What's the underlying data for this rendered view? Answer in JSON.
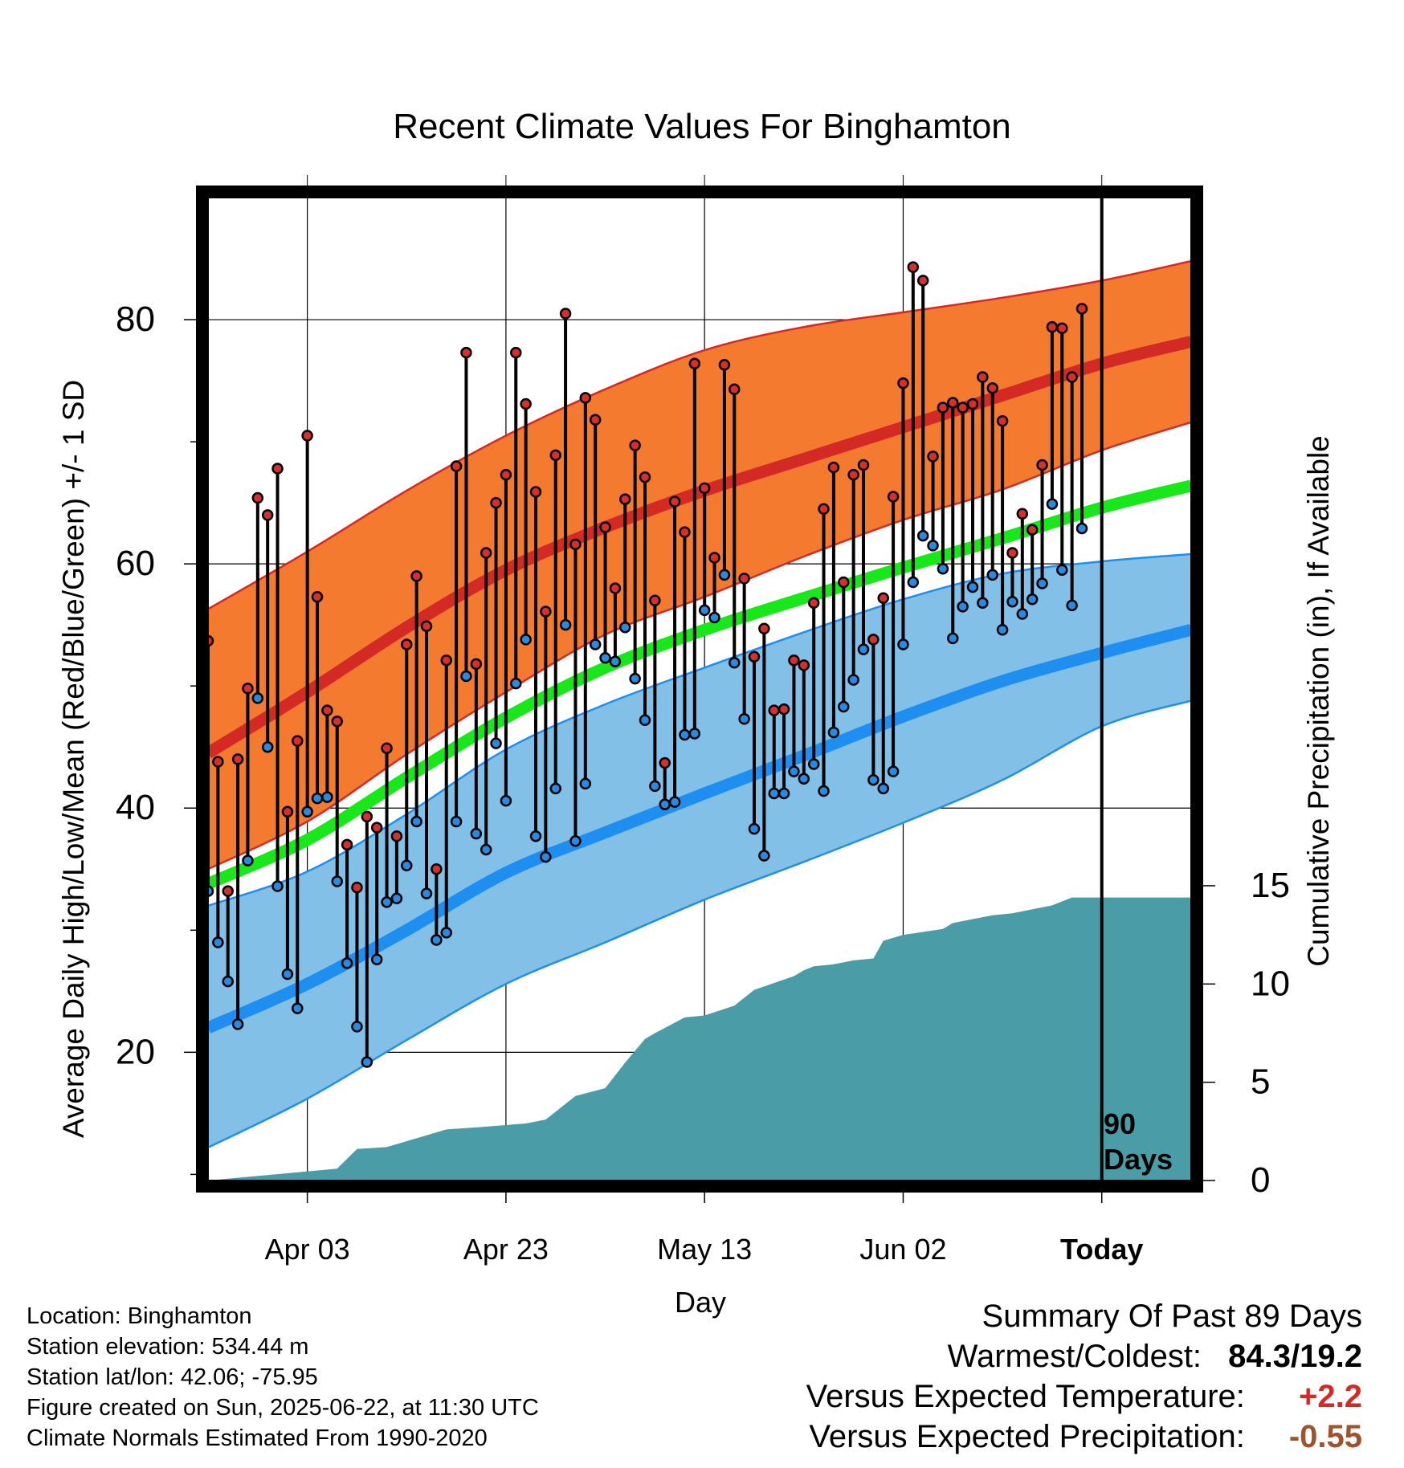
{
  "chart_data": {
    "type": "line",
    "title": "Recent Climate Values For Binghamton",
    "xlabel": "Day",
    "ylabel": "Average Daily High/Low/Mean (Red/Blue/Green) +/- 1 SD",
    "y2label": "Cumulative Precipitation (in), If Available",
    "x_range_days": [
      -90,
      9
    ],
    "ylim": [
      9.5,
      90
    ],
    "y2lim": [
      0,
      20
    ],
    "grid": true,
    "x_ticks": [
      {
        "day": -80,
        "label": "Apr 03"
      },
      {
        "day": -60,
        "label": "Apr 23"
      },
      {
        "day": -40,
        "label": "May 13"
      },
      {
        "day": -20,
        "label": "Jun 02"
      },
      {
        "day": 0,
        "label": "Today"
      }
    ],
    "y_ticks": [
      20,
      40,
      60,
      80
    ],
    "y_minor_ticks": [
      10,
      30,
      50,
      70
    ],
    "y2_ticks": [
      0,
      5,
      10,
      15
    ],
    "today_marker": {
      "day": 0,
      "label_line1": "90",
      "label_line2": "Days"
    },
    "normals": {
      "days": [
        -90,
        -80,
        -70,
        -60,
        -50,
        -40,
        -30,
        -20,
        -10,
        0,
        9
      ],
      "high_mean": [
        44.5,
        49.5,
        54.8,
        59.5,
        63.0,
        66.0,
        68.6,
        71.2,
        73.8,
        76.4,
        78.2
      ],
      "high_upper": [
        56.3,
        61.0,
        66.0,
        70.5,
        74.3,
        77.5,
        79.4,
        80.6,
        81.8,
        83.2,
        84.8
      ],
      "high_lower": [
        35.0,
        38.9,
        44.4,
        49.5,
        54.2,
        57.3,
        60.6,
        63.6,
        66.1,
        69.3,
        71.6
      ],
      "mean_mean": [
        33.8,
        37.4,
        42.5,
        47.4,
        51.5,
        54.6,
        57.2,
        59.7,
        62.1,
        64.6,
        66.4
      ],
      "low_mean": [
        22.0,
        25.6,
        30.0,
        34.7,
        38.0,
        41.2,
        44.3,
        47.5,
        50.4,
        52.7,
        54.6
      ],
      "low_upper": [
        32.0,
        34.8,
        39.5,
        44.8,
        48.5,
        51.5,
        54.4,
        57.1,
        59.2,
        60.2,
        60.8
      ],
      "low_lower": [
        12.2,
        16.2,
        21.0,
        25.6,
        29.0,
        32.5,
        35.6,
        38.8,
        42.3,
        46.7,
        48.8
      ]
    },
    "series": [
      {
        "name": "High",
        "values": [
          53.7,
          43.8,
          33.2,
          44.0,
          49.8,
          65.4,
          64.0,
          67.8,
          39.7,
          45.5,
          70.5,
          57.3,
          48.0,
          47.1,
          37.0,
          33.5,
          39.3,
          38.4,
          44.9,
          37.7,
          53.4,
          59.0,
          54.9,
          35.0,
          52.1,
          68.0,
          77.3,
          51.8,
          60.9,
          65.0,
          67.3,
          77.3,
          73.1,
          65.9,
          56.1,
          68.9,
          80.5,
          61.6,
          73.6,
          71.8,
          63.0,
          58.0,
          65.3,
          69.7,
          67.1,
          57.0,
          43.7,
          65.1,
          62.6,
          76.4,
          66.2,
          60.5,
          76.3,
          74.3,
          58.8,
          52.4,
          54.7,
          48.0,
          48.1,
          52.1,
          51.7,
          56.8,
          64.5,
          67.9,
          58.5,
          67.3,
          68.1,
          53.8,
          57.2,
          65.5,
          74.8,
          84.3,
          83.2,
          68.8,
          72.8,
          73.2,
          72.8,
          73.1,
          75.3,
          74.4,
          71.7,
          60.9,
          64.1,
          62.8,
          68.1,
          79.4,
          79.3,
          75.3,
          80.9
        ]
      },
      {
        "name": "Low",
        "values": [
          33.2,
          29.0,
          25.8,
          22.3,
          35.7,
          49.0,
          45.0,
          33.6,
          26.4,
          23.6,
          39.7,
          40.8,
          40.9,
          34.0,
          27.3,
          22.1,
          19.2,
          27.6,
          32.3,
          32.6,
          35.3,
          38.9,
          33.0,
          29.2,
          29.8,
          38.9,
          50.8,
          37.9,
          36.6,
          45.3,
          40.6,
          50.2,
          53.8,
          37.7,
          36.0,
          41.6,
          55.0,
          37.3,
          42.0,
          53.4,
          52.3,
          52.0,
          54.8,
          50.6,
          47.2,
          41.8,
          40.3,
          40.5,
          46.0,
          46.1,
          56.2,
          55.6,
          59.1,
          51.9,
          47.3,
          38.3,
          36.1,
          41.2,
          41.2,
          43.0,
          42.4,
          43.6,
          41.4,
          46.2,
          48.3,
          50.5,
          53.0,
          42.3,
          41.6,
          43.0,
          53.4,
          58.5,
          62.3,
          61.5,
          59.6,
          53.9,
          56.5,
          58.1,
          56.8,
          59.1,
          54.6,
          56.9,
          55.9,
          57.1,
          58.4,
          64.9,
          59.5,
          56.6,
          62.9
        ]
      },
      {
        "name": "Cumulative Precipitation",
        "days": [
          -90,
          -77,
          -75,
          -72,
          -68,
          -66,
          -63,
          -58,
          -56,
          -53,
          -50,
          -48,
          -46,
          -45,
          -42,
          -40,
          -37,
          -35,
          -31,
          -30,
          -29,
          -27,
          -25,
          -23,
          -22,
          -20,
          -16,
          -15,
          -13,
          -11,
          -9,
          -5,
          -3,
          9
        ],
        "values": [
          0,
          0.6,
          1.6,
          1.7,
          2.3,
          2.6,
          2.7,
          2.9,
          3.1,
          4.3,
          4.7,
          6.0,
          7.2,
          7.5,
          8.3,
          8.4,
          8.9,
          9.7,
          10.4,
          10.7,
          10.9,
          11.0,
          11.2,
          11.3,
          12.2,
          12.5,
          12.8,
          13.1,
          13.3,
          13.5,
          13.6,
          14.0,
          14.4,
          14.4
        ]
      }
    ]
  },
  "info": {
    "location": "Location: Binghamton",
    "elevation": "Station elevation: 534.44 m",
    "latlon": "Station lat/lon: 42.06; -75.95",
    "created": "Figure created on Sun, 2025-06-22, at 11:30 UTC",
    "normals": "Climate Normals Estimated From 1990-2020"
  },
  "summary": {
    "title": "Summary Of Past 89 Days",
    "warmest_coldest_label": "Warmest/Coldest:",
    "warmest_coldest_value": "84.3/19.2",
    "temp_label": "Versus Expected Temperature:",
    "temp_value": "+2.2",
    "precip_label": "Versus Expected Precipitation:",
    "precip_value": "-0.55"
  },
  "colors": {
    "high_band": "#f47a30",
    "high_line": "#d42a26",
    "low_band": "#82c0e8",
    "low_line": "#1e8ff0",
    "mean_line": "#18e81a",
    "precip_fill": "#4a9da6",
    "high_dot": "#d43030",
    "low_dot": "#2a8ae0",
    "temp_positive": "#d42a26",
    "precip_negative": "#a0522d"
  }
}
